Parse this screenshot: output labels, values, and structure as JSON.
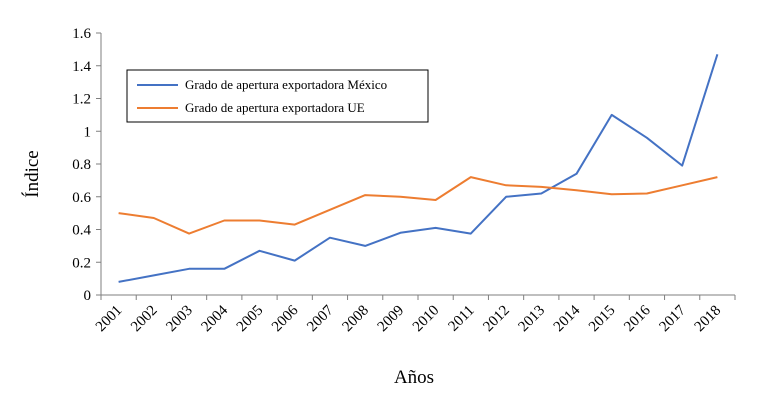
{
  "chart_data": {
    "type": "line",
    "title": "",
    "xlabel": "Años",
    "ylabel": "Índice",
    "ylim": [
      0,
      1.6
    ],
    "yticks": [
      "0",
      "0.2",
      "0.4",
      "0.6",
      "0.8",
      "1",
      "1.2",
      "1.4",
      "1.6"
    ],
    "ytick_values": [
      0,
      0.2,
      0.4,
      0.6,
      0.8,
      1.0,
      1.2,
      1.4,
      1.6
    ],
    "categories": [
      "2001",
      "2002",
      "2003",
      "2004",
      "2005",
      "2006",
      "2007",
      "2008",
      "2009",
      "2010",
      "2011",
      "2012",
      "2013",
      "2014",
      "2015",
      "2016",
      "2017",
      "2018"
    ],
    "legend_position": "upper-left",
    "series": [
      {
        "name": "Grado de apertura exportadora México",
        "color": "#4472C4",
        "values": [
          0.08,
          0.12,
          0.16,
          0.16,
          0.27,
          0.21,
          0.35,
          0.3,
          0.38,
          0.41,
          0.375,
          0.6,
          0.62,
          0.74,
          1.1,
          0.96,
          0.79,
          1.47
        ]
      },
      {
        "name": "Grado de apertura exportadora UE",
        "color": "#ED7D31",
        "values": [
          0.5,
          0.47,
          0.375,
          0.455,
          0.455,
          0.43,
          0.52,
          0.61,
          0.6,
          0.58,
          0.72,
          0.67,
          0.66,
          0.64,
          0.615,
          0.62,
          0.67,
          0.72
        ]
      }
    ]
  }
}
